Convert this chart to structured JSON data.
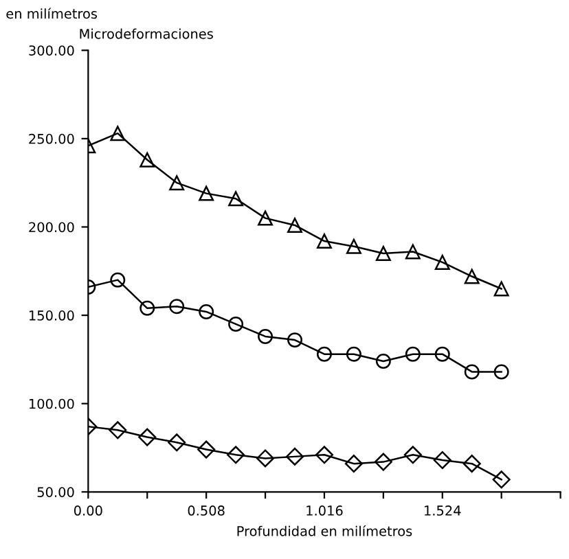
{
  "chart_data": {
    "type": "line",
    "title": "en milímetros",
    "ylabel": "Microdeformaciones",
    "xlabel": "Profundidad en milímetros",
    "x": [
      0,
      0.127,
      0.254,
      0.381,
      0.508,
      0.635,
      0.762,
      0.889,
      1.016,
      1.143,
      1.27,
      1.397,
      1.524,
      1.651,
      1.778
    ],
    "series": [
      {
        "color": "#000000",
        "marker": "triangle",
        "values": [
          246,
          253,
          238,
          225,
          219,
          216,
          205,
          201,
          192,
          189,
          185,
          186,
          180,
          172,
          165
        ]
      },
      {
        "color": "#000000",
        "marker": "circle",
        "values": [
          166,
          170,
          154,
          155,
          152,
          145,
          138,
          136,
          128,
          128,
          124,
          128,
          128,
          118,
          118
        ]
      },
      {
        "color": "#000000",
        "marker": "diamond",
        "values": [
          87,
          85,
          81,
          78,
          74,
          71,
          69,
          70,
          71,
          66,
          67,
          71,
          68,
          66,
          57
        ]
      }
    ],
    "xlim": [
      0,
      2.032
    ],
    "xticks": [
      {
        "value": 0,
        "label": "0.00"
      },
      {
        "value": 0.254,
        "label": null
      },
      {
        "value": 0.508,
        "label": "0.508"
      },
      {
        "value": 0.762,
        "label": null
      },
      {
        "value": 1.016,
        "label": "1.016"
      },
      {
        "value": 1.27,
        "label": null
      },
      {
        "value": 1.524,
        "label": "1.524"
      },
      {
        "value": 1.778,
        "label": null
      },
      {
        "value": 2.032,
        "label": null
      }
    ],
    "ylim": [
      50,
      300
    ],
    "yticks": [
      {
        "value": 50,
        "label": "50.00"
      },
      {
        "value": 100,
        "label": "100.00"
      },
      {
        "value": 150,
        "label": "150.00"
      },
      {
        "value": 200,
        "label": "200.00"
      },
      {
        "value": 250,
        "label": "250.00"
      },
      {
        "value": 300,
        "label": "300.00"
      }
    ],
    "line_style": "solid",
    "grid": false,
    "legend": false
  }
}
